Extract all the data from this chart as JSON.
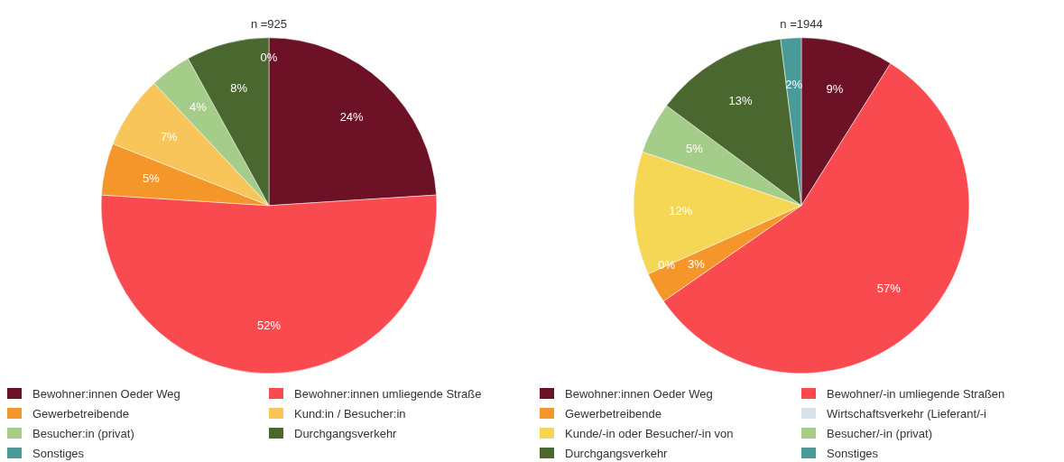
{
  "chart_data": [
    {
      "type": "pie",
      "title": "n =925",
      "categories": [
        "Bewohner:innen Oeder Weg",
        "Bewohner:innen umliegende Straße",
        "Gewerbetreibende",
        "Kund:in / Besucher:in",
        "Besucher:in (privat)",
        "Durchgangsverkehr",
        "Sonstiges"
      ],
      "values": [
        24,
        52,
        5,
        7,
        4,
        8,
        0
      ],
      "value_labels": [
        "24%",
        "52%",
        "5%",
        "7%",
        "4%",
        "8%",
        "0%"
      ],
      "colors": [
        "#6d1126",
        "#f84a4f",
        "#f4962a",
        "#f7c55a",
        "#a5cd8a",
        "#4a6730",
        "#4a9a9a"
      ],
      "legend": "bottom"
    },
    {
      "type": "pie",
      "title": "n =1944",
      "categories": [
        "Bewohner:innen Oeder Weg",
        "Bewohner/-in umliegende Straßen",
        "Gewerbetreibende",
        "Wirtschaftsverkehr (Lieferant/-i",
        "Kunde/-in oder Besucher/-in von",
        "Besucher/-in (privat)",
        "Durchgangsverkehr",
        "Sonstiges"
      ],
      "values": [
        9,
        57,
        3,
        0,
        12,
        5,
        13,
        2
      ],
      "value_labels": [
        "9%",
        "57%",
        "3%",
        "0%",
        "12%",
        "5%",
        "13%",
        "2%"
      ],
      "colors": [
        "#6d1126",
        "#f84a4f",
        "#f4962a",
        "#d7e3ec",
        "#f6d755",
        "#a5cd8a",
        "#4a6730",
        "#4a9a9a"
      ],
      "legend": "bottom"
    }
  ]
}
